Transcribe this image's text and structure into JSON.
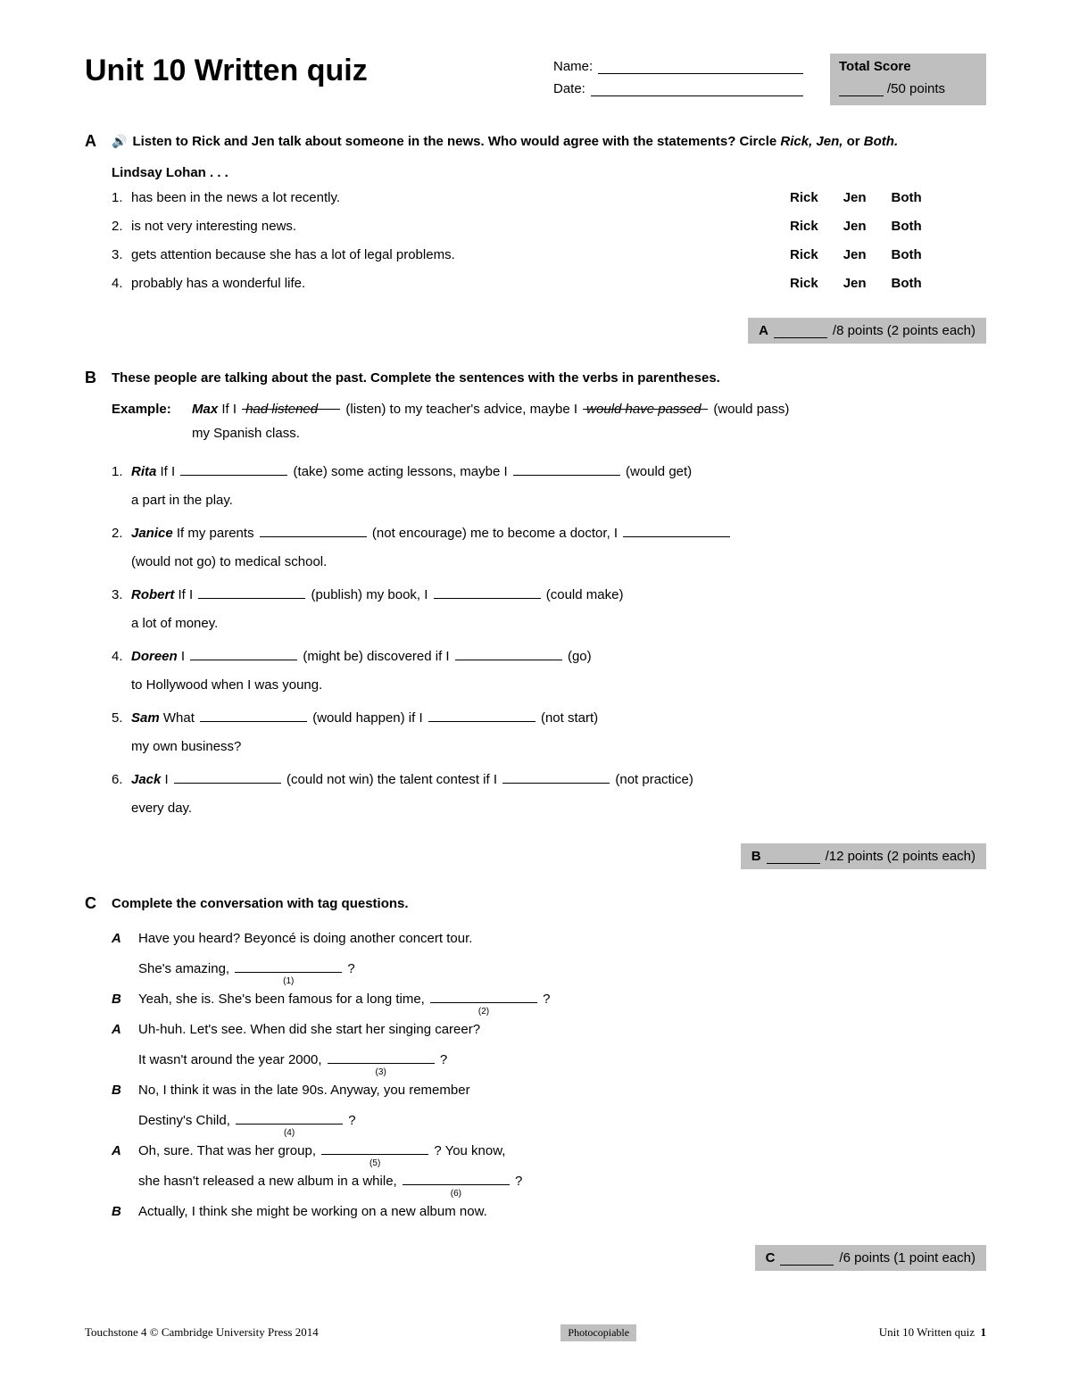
{
  "title": "Unit 10 Written quiz",
  "header": {
    "name_label": "Name:",
    "date_label": "Date:",
    "score_title": "Total Score",
    "score_total": "/50 points"
  },
  "sectionA": {
    "letter": "A",
    "instruction_pre": "Listen to Rick and Jen talk about someone in the news. Who would agree with the statements? Circle ",
    "instruction_names": "Rick, Jen,",
    "instruction_or": " or ",
    "instruction_both": "Both.",
    "subject": "Lindsay Lohan . . .",
    "choices": [
      "Rick",
      "Jen",
      "Both"
    ],
    "items": [
      {
        "n": "1.",
        "t": "has been in the news a lot recently."
      },
      {
        "n": "2.",
        "t": "is not very interesting news."
      },
      {
        "n": "3.",
        "t": "gets attention because she has a lot of legal problems."
      },
      {
        "n": "4.",
        "t": "probably has a wonderful life."
      }
    ],
    "score": {
      "letter": "A",
      "text": "/8 points (2 points each)"
    }
  },
  "sectionB": {
    "letter": "B",
    "instruction": "These people are talking about the past. Complete the sentences with the verbs in parentheses.",
    "example_label": "Example:",
    "example": {
      "name": "Max",
      "p1": "If I ",
      "fill1": "had listened",
      "p2": " (listen) to my teacher's advice, maybe I ",
      "fill2": "would have passed",
      "p3": " (would pass)",
      "cont": "my Spanish class."
    },
    "items": [
      {
        "n": "1.",
        "name": "Rita",
        "p1": "If I ",
        "h1": " (take) some acting lessons, maybe I ",
        "h2": " (would get)",
        "cont": "a part in the play."
      },
      {
        "n": "2.",
        "name": "Janice",
        "p1": "If my parents ",
        "h1": " (not encourage) me to become a doctor, I ",
        "h2": "",
        "cont": "(would not go) to medical school."
      },
      {
        "n": "3.",
        "name": "Robert",
        "p1": "If I ",
        "h1": " (publish) my book, I ",
        "h2": " (could make)",
        "cont": "a lot of money."
      },
      {
        "n": "4.",
        "name": "Doreen",
        "p1": "I ",
        "h1": " (might be) discovered if I ",
        "h2": " (go)",
        "cont": "to Hollywood when I was young."
      },
      {
        "n": "5.",
        "name": "Sam",
        "p1": "What ",
        "h1": " (would happen) if I ",
        "h2": " (not start)",
        "cont": "my own business?"
      },
      {
        "n": "6.",
        "name": "Jack",
        "p1": "I ",
        "h1": " (could not win) the talent contest if I ",
        "h2": " (not practice)",
        "cont": "every day."
      }
    ],
    "score": {
      "letter": "B",
      "text": "/12 points (2 points each)"
    }
  },
  "sectionC": {
    "letter": "C",
    "instruction": "Complete the conversation with tag questions.",
    "lines": [
      {
        "sp": "A",
        "pre": "Have you heard? Beyoncé is doing another concert tour."
      },
      {
        "sp": "",
        "pre": "She's amazing, ",
        "blank": "(1)",
        "post": " ?"
      },
      {
        "sp": "B",
        "pre": "Yeah, she is. She's been famous for a long time, ",
        "blank": "(2)",
        "post": " ?"
      },
      {
        "sp": "A",
        "pre": "Uh-huh. Let's see. When did she start her singing career?"
      },
      {
        "sp": "",
        "pre": "It wasn't around the year 2000, ",
        "blank": "(3)",
        "post": " ?"
      },
      {
        "sp": "B",
        "pre": "No, I think it was in the late 90s. Anyway, you remember"
      },
      {
        "sp": "",
        "pre": "Destiny's Child, ",
        "blank": "(4)",
        "post": " ?"
      },
      {
        "sp": "A",
        "pre": "Oh, sure. That was her group, ",
        "blank": "(5)",
        "post": " ? You know,"
      },
      {
        "sp": "",
        "pre": "she hasn't released a new album in a while, ",
        "blank": "(6)",
        "post": " ?"
      },
      {
        "sp": "B",
        "pre": "Actually, I think she might be working on a new album now."
      }
    ],
    "score": {
      "letter": "C",
      "text": "/6 points (1 point each)"
    }
  },
  "footer": {
    "left": "Touchstone 4 © Cambridge University Press 2014",
    "mid": "Photocopiable",
    "right_text": "Unit 10 Written quiz",
    "page": "1"
  }
}
